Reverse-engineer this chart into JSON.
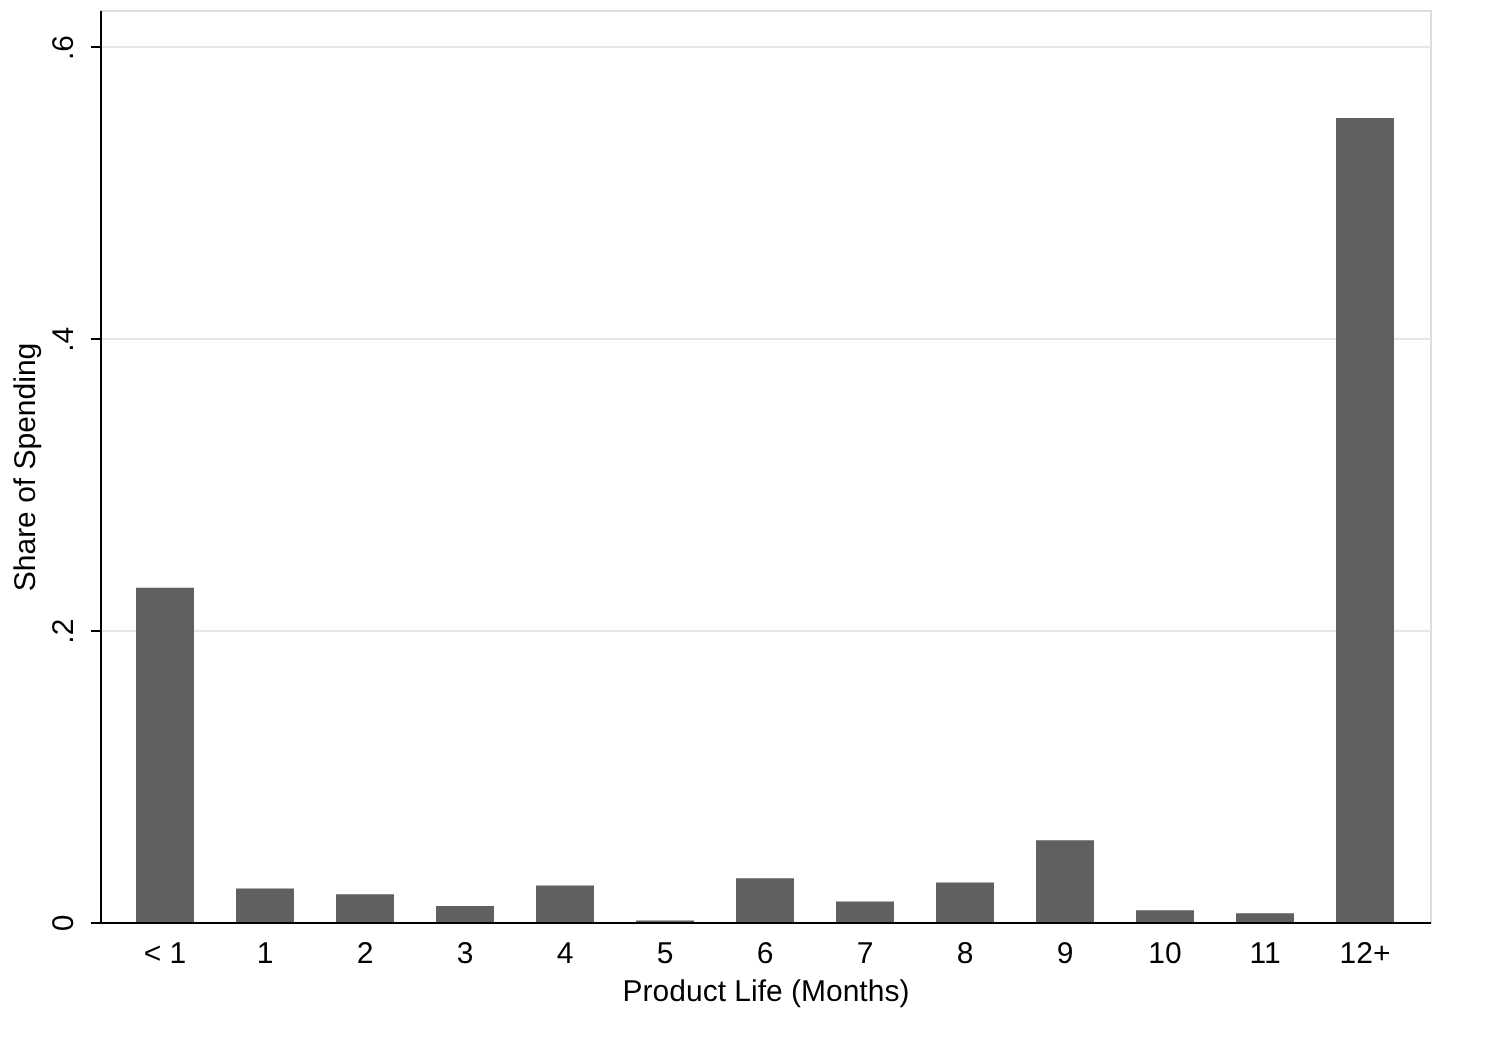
{
  "chart_data": {
    "type": "bar",
    "xlabel": "Product Life (Months)",
    "ylabel": "Share of Spending",
    "categories": [
      "< 1",
      "1",
      "2",
      "3",
      "4",
      "5",
      "6",
      "7",
      "8",
      "9",
      "10",
      "11",
      "12+"
    ],
    "values": [
      0.229,
      0.023,
      0.019,
      0.011,
      0.025,
      0.001,
      0.03,
      0.014,
      0.027,
      0.056,
      0.008,
      0.006,
      0.551
    ],
    "color": "#606060",
    "ylim": [
      0,
      0.625
    ],
    "yticks": [
      0,
      {
        "value": 0.2,
        "label": ".2"
      },
      {
        "value": 0.4,
        "label": ".4"
      },
      {
        "value": 0.6,
        "label": ".6"
      }
    ],
    "grid": "y"
  }
}
